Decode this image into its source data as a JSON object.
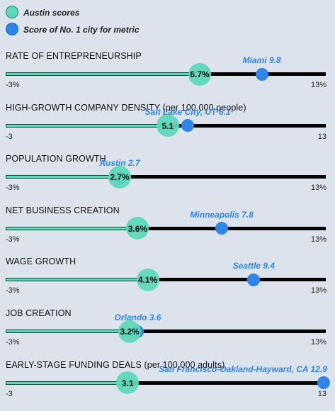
{
  "legend": {
    "austin": "Austin scores",
    "leader": "Score of No. 1 city for metric"
  },
  "colors": {
    "austin": "#5ed8ba",
    "leader": "#2f86e8",
    "track": "#000000",
    "background": "#dde3ec"
  },
  "chart_data": {
    "type": "dot-on-bar",
    "series": [
      {
        "name": "Austin scores"
      },
      {
        "name": "Score of No. 1 city for metric"
      }
    ],
    "metrics": [
      {
        "title": "RATE OF ENTREPRENEURSHIP",
        "min": -3,
        "max": 13,
        "min_label": "-3%",
        "max_label": "13%",
        "austin": 6.7,
        "austin_label": "6.7%",
        "leader_value": 9.8,
        "leader_label": "Miami 9.8"
      },
      {
        "title": "HIGH-GROWTH COMPANY DENSITY (per 100,000 people)",
        "min": -3,
        "max": 13,
        "min_label": "-3",
        "max_label": "13",
        "austin": 5.1,
        "austin_label": "5.1",
        "leader_value": 6.1,
        "leader_label": "Salt Lake City, UT 6.1"
      },
      {
        "title": "POPULATION GROWTH",
        "min": -3,
        "max": 13,
        "min_label": "-3%",
        "max_label": "13%",
        "austin": 2.7,
        "austin_label": "2.7%",
        "leader_value": 2.7,
        "leader_label": "Austin 2.7"
      },
      {
        "title": "NET BUSINESS CREATION",
        "min": -3,
        "max": 13,
        "min_label": "-3%",
        "max_label": "13%",
        "austin": 3.6,
        "austin_label": "3.6%",
        "leader_value": 7.8,
        "leader_label": "Minneapolis 7.8"
      },
      {
        "title": "WAGE GROWTH",
        "min": -3,
        "max": 13,
        "min_label": "-3%",
        "max_label": "13%",
        "austin": 4.1,
        "austin_label": "4.1%",
        "leader_value": 9.4,
        "leader_label": "Seattle 9.4"
      },
      {
        "title": "JOB CREATION",
        "min": -3,
        "max": 13,
        "min_label": "-3%",
        "max_label": "13%",
        "austin": 3.2,
        "austin_label": "3.2%",
        "leader_value": 3.6,
        "leader_label": "Orlando 3.6"
      },
      {
        "title": "EARLY-STAGE FUNDING DEALS (per 100,000 adults)",
        "min": -3,
        "max": 13,
        "min_label": "-3",
        "max_label": "13",
        "austin": 3.1,
        "austin_label": "3.1",
        "leader_value": 12.9,
        "leader_label": "San Francisco-Oakland-Hayward, CA 12.9"
      }
    ]
  }
}
